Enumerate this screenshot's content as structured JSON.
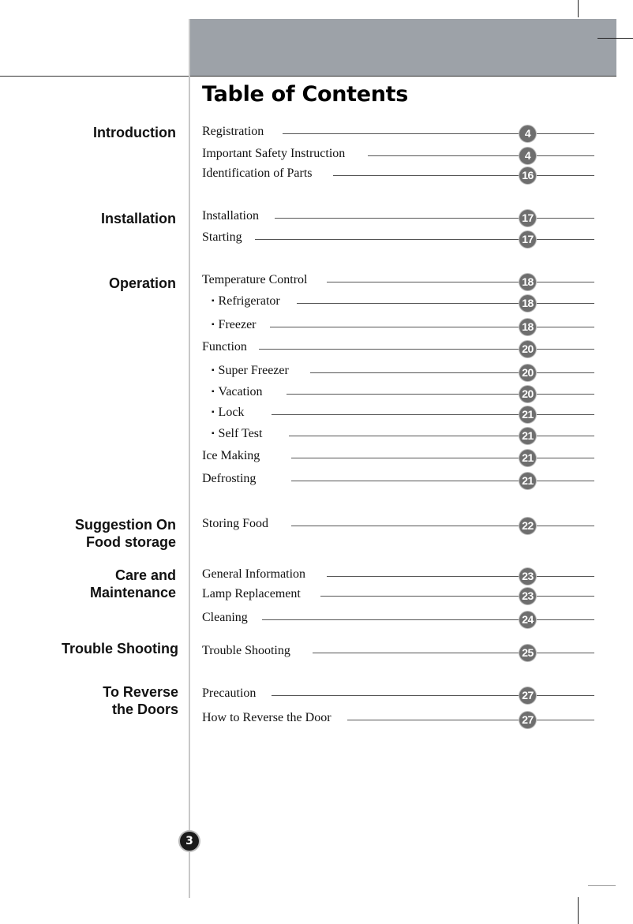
{
  "title": "Table of Contents",
  "page_number": "3",
  "sections": [
    {
      "lines": [
        "Introduction"
      ]
    },
    {
      "lines": [
        "Installation"
      ]
    },
    {
      "lines": [
        "Operation"
      ]
    },
    {
      "lines": [
        "Suggestion On",
        "Food storage"
      ]
    },
    {
      "lines": [
        "Care and",
        "Maintenance"
      ]
    },
    {
      "lines": [
        "Trouble Shooting"
      ]
    },
    {
      "lines": [
        "To Reverse",
        "the Doors"
      ]
    }
  ],
  "entries": [
    {
      "label": "Registration",
      "page": "4",
      "sub": false
    },
    {
      "label": "Important Safety Instruction",
      "page": "4",
      "sub": false
    },
    {
      "label": "Identification of Parts",
      "page": "16",
      "sub": false
    },
    {
      "label": "Installation",
      "page": "17",
      "sub": false
    },
    {
      "label": "Starting",
      "page": "17",
      "sub": false
    },
    {
      "label": "Temperature Control",
      "page": "18",
      "sub": false
    },
    {
      "label": "Refrigerator",
      "page": "18",
      "sub": true
    },
    {
      "label": "Freezer",
      "page": "18",
      "sub": true
    },
    {
      "label": "Function",
      "page": "20",
      "sub": false
    },
    {
      "label": "Super Freezer",
      "page": "20",
      "sub": true
    },
    {
      "label": "Vacation",
      "page": "20",
      "sub": true
    },
    {
      "label": "Lock",
      "page": "21",
      "sub": true
    },
    {
      "label": "Self Test",
      "page": "21",
      "sub": true
    },
    {
      "label": "Ice Making",
      "page": "21",
      "sub": false
    },
    {
      "label": "Defrosting",
      "page": "21",
      "sub": false
    },
    {
      "label": "Storing Food",
      "page": "22",
      "sub": false
    },
    {
      "label": "General Information",
      "page": "23",
      "sub": false
    },
    {
      "label": "Lamp Replacement",
      "page": "23",
      "sub": false
    },
    {
      "label": "Cleaning",
      "page": "24",
      "sub": false
    },
    {
      "label": "Trouble Shooting",
      "page": "25",
      "sub": false
    },
    {
      "label": "Precaution",
      "page": "27",
      "sub": false
    },
    {
      "label": "How to Reverse the Door",
      "page": "27",
      "sub": false
    }
  ],
  "colors": {
    "header_band": "#9da2a8",
    "badge": "#6e6e6e"
  }
}
